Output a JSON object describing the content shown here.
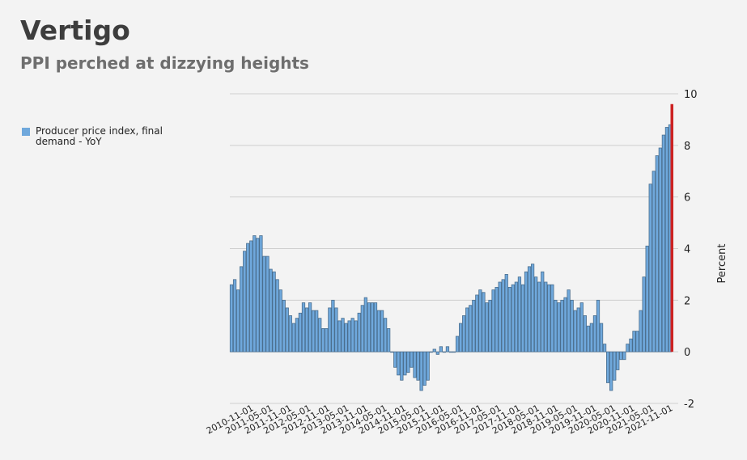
{
  "header": {
    "title": "Vertigo",
    "subtitle": "PPI perched at dizzying heights"
  },
  "colors": {
    "bar_fill": "#6fa8dc",
    "bar_stroke": "#4a6e8e",
    "highlight": "#cc2222",
    "grid": "#cfcfcf",
    "background": "#f3f3f3"
  },
  "chart_data": {
    "type": "bar",
    "ylabel": "Percent",
    "ylim": [
      -2,
      10
    ],
    "yticks": [
      -2,
      0,
      2,
      4,
      6,
      8,
      10
    ],
    "grid": true,
    "legend_position": "left",
    "xtick_labels": [
      "2010-11-01",
      "2011-05-01",
      "2011-11-01",
      "2012-05-01",
      "2012-11-01",
      "2013-05-01",
      "2013-11-01",
      "2014-05-01",
      "2014-11-01",
      "2015-05-01",
      "2015-11-01",
      "2016-05-01",
      "2016-11-01",
      "2017-05-01",
      "2017-11-01",
      "2018-05-01",
      "2018-11-01",
      "2019-05-01",
      "2019-11-01",
      "2020-05-01",
      "2020-11-01",
      "2021-05-01",
      "2021-11-01"
    ],
    "series": [
      {
        "name": "Producer price index, final demand - YoY",
        "values": [
          2.6,
          2.8,
          2.4,
          3.3,
          3.9,
          4.2,
          4.3,
          4.5,
          4.4,
          4.5,
          3.7,
          3.7,
          3.2,
          3.1,
          2.8,
          2.4,
          2.0,
          1.7,
          1.4,
          1.1,
          1.3,
          1.5,
          1.9,
          1.7,
          1.9,
          1.6,
          1.6,
          1.3,
          0.9,
          0.9,
          1.7,
          2.0,
          1.7,
          1.2,
          1.3,
          1.1,
          1.2,
          1.3,
          1.2,
          1.5,
          1.8,
          2.1,
          1.9,
          1.9,
          1.9,
          1.6,
          1.6,
          1.3,
          0.9,
          0.0,
          -0.6,
          -0.9,
          -1.1,
          -0.9,
          -0.8,
          -0.6,
          -1.0,
          -1.1,
          -1.5,
          -1.3,
          -1.1,
          0.0,
          0.1,
          -0.1,
          0.2,
          0.0,
          0.2,
          0.0,
          0.0,
          0.6,
          1.1,
          1.4,
          1.7,
          1.8,
          2.0,
          2.2,
          2.4,
          2.3,
          1.9,
          2.0,
          2.4,
          2.5,
          2.7,
          2.8,
          3.0,
          2.5,
          2.6,
          2.7,
          2.9,
          2.6,
          3.1,
          3.3,
          3.4,
          2.9,
          2.7,
          3.1,
          2.7,
          2.6,
          2.6,
          2.0,
          1.9,
          2.0,
          2.1,
          2.4,
          2.0,
          1.6,
          1.7,
          1.9,
          1.4,
          1.0,
          1.1,
          1.4,
          2.0,
          1.1,
          0.3,
          -1.2,
          -1.5,
          -1.1,
          -0.7,
          -0.3,
          -0.3,
          0.3,
          0.5,
          0.8,
          0.8,
          1.6,
          2.9,
          4.1,
          6.5,
          7.0,
          7.6,
          7.9,
          8.4,
          8.7,
          8.8
        ]
      }
    ],
    "highlight_last": 9.6
  }
}
